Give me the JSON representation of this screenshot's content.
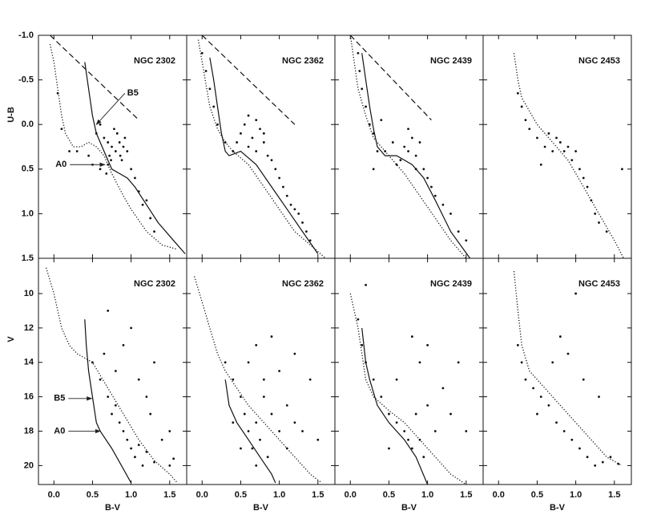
{
  "chart_data": [
    {
      "type": "scatter",
      "title": "NGC 2302",
      "ylabel": "U-B",
      "xlim": [
        -0.2,
        1.72
      ],
      "ylim": [
        1.5,
        -1.0
      ],
      "yticks": [
        {
          "value": -1.0,
          "label": "-1.0"
        },
        -0.5,
        {
          "value": 0.0,
          "label": "0.0"
        },
        0.5,
        {
          "value": 1.0,
          "label": "1.0"
        },
        1.5
      ],
      "annotations": [
        "B5",
        "A0"
      ],
      "series": [
        {
          "style": "dots",
          "x": [
            0.1,
            0.2,
            0.3,
            0.45,
            0.55,
            0.6,
            0.65,
            0.7,
            0.72,
            0.75,
            0.8,
            0.82,
            0.85,
            0.88,
            0.9,
            0.95,
            1.0,
            0.7,
            0.78,
            0.86,
            0.92,
            1.05,
            1.1,
            1.15,
            1.2,
            1.25,
            1.3,
            0.68,
            0.74,
            0.6,
            0.5,
            0.05
          ],
          "values": [
            0.05,
            0.3,
            0.3,
            0.35,
            0.1,
            0.0,
            0.15,
            0.2,
            0.35,
            0.25,
            0.3,
            0.1,
            0.2,
            0.4,
            0.25,
            0.3,
            0.5,
            0.45,
            0.05,
            0.35,
            0.15,
            0.6,
            0.75,
            0.9,
            0.85,
            1.05,
            1.2,
            0.55,
            0.4,
            0.5,
            0.45,
            -0.35
          ]
        },
        {
          "style": "dotted",
          "x": [
            -0.05,
            0.0,
            0.05,
            0.1,
            0.15,
            0.25,
            0.35,
            0.45,
            0.55,
            0.65,
            0.75,
            0.9,
            1.0,
            1.2,
            1.4,
            1.6
          ],
          "values": [
            -0.9,
            -0.7,
            -0.4,
            -0.1,
            0.1,
            0.25,
            0.25,
            0.2,
            0.25,
            0.35,
            0.55,
            0.8,
            0.95,
            1.2,
            1.35,
            1.4
          ]
        },
        {
          "style": "solid",
          "x": [
            0.4,
            0.45,
            0.5,
            0.55,
            0.65,
            0.75,
            0.85,
            0.95,
            1.05,
            1.2,
            1.35,
            1.55,
            1.7
          ],
          "values": [
            -0.7,
            -0.4,
            -0.1,
            0.1,
            0.3,
            0.5,
            0.55,
            0.6,
            0.7,
            0.9,
            1.1,
            1.3,
            1.45
          ]
        },
        {
          "style": "dashed",
          "x": [
            -0.05,
            1.1
          ],
          "values": [
            -1.0,
            -0.05
          ]
        }
      ]
    },
    {
      "type": "scatter",
      "title": "NGC 2362",
      "xlim": [
        -0.2,
        1.72
      ],
      "ylim": [
        1.5,
        -1.0
      ],
      "series": [
        {
          "style": "dots",
          "x": [
            0.0,
            0.05,
            0.1,
            0.15,
            0.2,
            0.3,
            0.4,
            0.45,
            0.5,
            0.55,
            0.6,
            0.65,
            0.7,
            0.75,
            0.8,
            0.85,
            0.9,
            0.95,
            1.0,
            1.05,
            1.1,
            1.15,
            1.2,
            1.25,
            1.3,
            1.35,
            1.4,
            0.6,
            0.7,
            0.8
          ],
          "values": [
            -0.8,
            -0.6,
            -0.4,
            -0.2,
            0.0,
            0.2,
            0.3,
            0.2,
            0.1,
            0.0,
            -0.1,
            0.15,
            0.3,
            0.05,
            0.2,
            0.35,
            0.4,
            0.5,
            0.6,
            0.7,
            0.8,
            0.9,
            0.95,
            1.0,
            1.1,
            1.2,
            1.3,
            0.25,
            -0.05,
            0.1
          ]
        },
        {
          "style": "dotted",
          "x": [
            -0.05,
            0.0,
            0.05,
            0.1,
            0.2,
            0.3,
            0.4,
            0.6,
            0.8,
            1.0,
            1.2,
            1.4,
            1.6
          ],
          "values": [
            -0.95,
            -0.7,
            -0.45,
            -0.2,
            0.05,
            0.2,
            0.3,
            0.45,
            0.7,
            0.95,
            1.2,
            1.35,
            1.5
          ]
        },
        {
          "style": "solid",
          "x": [
            0.1,
            0.15,
            0.2,
            0.25,
            0.3,
            0.35,
            0.5,
            0.7,
            0.9,
            1.1,
            1.3,
            1.5
          ],
          "values": [
            -0.75,
            -0.5,
            -0.2,
            0.1,
            0.3,
            0.35,
            0.3,
            0.45,
            0.7,
            0.95,
            1.2,
            1.45
          ]
        },
        {
          "style": "dashed",
          "x": [
            0.0,
            1.2
          ],
          "values": [
            -1.0,
            0.0
          ]
        }
      ]
    },
    {
      "type": "scatter",
      "title": "NGC 2439",
      "xlim": [
        -0.2,
        1.72
      ],
      "ylim": [
        1.5,
        -1.0
      ],
      "series": [
        {
          "style": "dots",
          "x": [
            0.1,
            0.12,
            0.15,
            0.2,
            0.25,
            0.3,
            0.35,
            0.45,
            0.55,
            0.65,
            0.7,
            0.75,
            0.8,
            0.85,
            0.9,
            0.95,
            1.0,
            1.05,
            1.1,
            1.2,
            1.3,
            1.4,
            0.6,
            0.75,
            0.85,
            0.4,
            0.3,
            1.5
          ],
          "values": [
            -0.8,
            -0.6,
            -0.4,
            -0.2,
            0.0,
            0.1,
            0.3,
            0.3,
            0.2,
            0.4,
            0.25,
            0.3,
            0.15,
            0.35,
            0.2,
            0.5,
            0.6,
            0.7,
            0.8,
            0.9,
            1.0,
            1.2,
            0.45,
            0.05,
            0.5,
            -0.05,
            0.5,
            1.3
          ]
        },
        {
          "style": "dotted",
          "x": [
            0.0,
            0.05,
            0.1,
            0.2,
            0.3,
            0.5,
            0.7,
            0.9,
            1.1,
            1.3,
            1.5
          ],
          "values": [
            -1.0,
            -0.7,
            -0.4,
            -0.1,
            0.15,
            0.35,
            0.55,
            0.8,
            1.05,
            1.3,
            1.5
          ]
        },
        {
          "style": "solid",
          "x": [
            0.15,
            0.2,
            0.25,
            0.3,
            0.35,
            0.45,
            0.6,
            0.8,
            0.95,
            1.1,
            1.3,
            1.55
          ],
          "values": [
            -0.8,
            -0.5,
            -0.2,
            0.05,
            0.25,
            0.35,
            0.35,
            0.45,
            0.6,
            0.85,
            1.2,
            1.5
          ]
        },
        {
          "style": "dashed",
          "x": [
            0.0,
            1.05
          ],
          "values": [
            -1.0,
            -0.05
          ]
        }
      ]
    },
    {
      "type": "scatter",
      "title": "NGC 2453",
      "xlim": [
        -0.2,
        1.72
      ],
      "ylim": [
        1.5,
        -1.0
      ],
      "series": [
        {
          "style": "dots",
          "x": [
            0.25,
            0.3,
            0.35,
            0.4,
            0.5,
            0.6,
            0.7,
            0.75,
            0.8,
            0.85,
            0.9,
            0.95,
            1.0,
            1.05,
            1.1,
            1.15,
            1.2,
            1.25,
            1.3,
            1.4,
            1.6,
            0.55,
            0.65
          ],
          "values": [
            -0.35,
            -0.2,
            -0.05,
            0.05,
            0.15,
            0.25,
            0.3,
            0.15,
            0.2,
            0.3,
            0.25,
            0.4,
            0.3,
            0.5,
            0.6,
            0.7,
            0.85,
            1.0,
            1.1,
            1.2,
            0.5,
            0.45,
            0.1
          ]
        },
        {
          "style": "dotted",
          "x": [
            0.2,
            0.25,
            0.3,
            0.5,
            0.7,
            0.9,
            1.1,
            1.3,
            1.5,
            1.62
          ],
          "values": [
            -0.8,
            -0.5,
            -0.3,
            0.0,
            0.2,
            0.4,
            0.7,
            1.0,
            1.3,
            1.5
          ]
        }
      ]
    },
    {
      "type": "scatter",
      "title": "NGC 2302",
      "ylabel": "V",
      "xlabel": "B-V",
      "xlim": [
        -0.2,
        1.72
      ],
      "ylim": [
        21.1,
        7.95
      ],
      "yticks": [
        10,
        12,
        14,
        16,
        18,
        20
      ],
      "xticks": [
        {
          "value": 0.0,
          "label": "0.0"
        },
        0.5,
        {
          "value": 1.0,
          "label": "1.0"
        },
        1.5
      ],
      "annotations": [
        "B5",
        "A0"
      ],
      "series": [
        {
          "style": "dots",
          "x": [
            0.5,
            0.6,
            0.7,
            0.75,
            0.8,
            0.85,
            0.9,
            0.95,
            1.0,
            1.05,
            1.1,
            1.15,
            1.2,
            1.3,
            1.4,
            1.5,
            0.65,
            0.8,
            0.9,
            1.0,
            1.1,
            1.2,
            1.25,
            0.7,
            1.3,
            1.5,
            1.55
          ],
          "values": [
            14,
            15,
            16,
            17,
            16.5,
            17.5,
            18,
            18.5,
            19,
            19.5,
            18.8,
            20,
            19.2,
            19.8,
            18.5,
            20,
            13.5,
            14.5,
            13,
            12,
            15,
            16,
            17,
            11,
            14,
            18,
            19.6
          ]
        },
        {
          "style": "dotted",
          "x": [
            -0.1,
            0.0,
            0.05,
            0.1,
            0.2,
            0.3,
            0.5,
            0.7,
            0.9,
            1.1,
            1.3,
            1.5,
            1.6
          ],
          "values": [
            8.5,
            10,
            11,
            12,
            13,
            13.5,
            14,
            15.5,
            17,
            18.5,
            19.7,
            20.5,
            21
          ]
        },
        {
          "style": "solid",
          "x": [
            0.4,
            0.42,
            0.45,
            0.5,
            0.55,
            0.6,
            0.75,
            0.9,
            1.0
          ],
          "values": [
            11.5,
            13,
            14.5,
            16,
            17.5,
            18,
            19,
            20.2,
            21
          ]
        }
      ]
    },
    {
      "type": "scatter",
      "title": "NGC 2362",
      "xlabel": "B-V",
      "xlim": [
        -0.2,
        1.72
      ],
      "ylim": [
        21.1,
        7.95
      ],
      "xticks": [
        {
          "value": 0.0,
          "label": "0.0"
        },
        0.5,
        {
          "value": 1.0,
          "label": "1.0"
        },
        1.5
      ],
      "series": [
        {
          "style": "dots",
          "x": [
            0.3,
            0.4,
            0.5,
            0.55,
            0.6,
            0.65,
            0.7,
            0.75,
            0.8,
            0.85,
            0.9,
            1.0,
            1.1,
            1.2,
            1.3,
            1.4,
            1.5,
            0.6,
            0.7,
            0.8,
            0.9,
            1.0,
            0.5,
            0.7,
            1.2,
            1.1,
            0.4
          ],
          "values": [
            14,
            15,
            16,
            17,
            18,
            19,
            17.5,
            18.5,
            16,
            19.5,
            17,
            18,
            16.5,
            17.5,
            18,
            15,
            18.5,
            14,
            13,
            15,
            12.5,
            14.5,
            19,
            20,
            13.5,
            19,
            17.5
          ]
        },
        {
          "style": "dotted",
          "x": [
            -0.1,
            0.0,
            0.1,
            0.2,
            0.3,
            0.45,
            0.6,
            0.8,
            1.0,
            1.2,
            1.4,
            1.55
          ],
          "values": [
            9,
            10.5,
            12,
            13.5,
            14.5,
            15.5,
            16.5,
            17.5,
            18.5,
            19.5,
            20.5,
            21
          ]
        },
        {
          "style": "solid",
          "x": [
            0.3,
            0.35,
            0.45,
            0.6,
            0.75,
            0.9,
            0.95
          ],
          "values": [
            15,
            16.5,
            17.5,
            18.5,
            19.5,
            20.5,
            21
          ]
        }
      ]
    },
    {
      "type": "scatter",
      "title": "NGC 2439",
      "xlabel": "B-V",
      "xlim": [
        -0.2,
        1.72
      ],
      "ylim": [
        21.1,
        7.95
      ],
      "xticks": [
        {
          "value": 0.0,
          "label": "0.0"
        },
        0.5,
        {
          "value": 1.0,
          "label": "1.0"
        },
        1.5
      ],
      "series": [
        {
          "style": "dots",
          "x": [
            0.1,
            0.15,
            0.2,
            0.3,
            0.4,
            0.5,
            0.6,
            0.7,
            0.75,
            0.8,
            0.85,
            0.9,
            0.95,
            1.0,
            1.1,
            1.2,
            1.3,
            1.4,
            0.6,
            0.9,
            1.0,
            0.8,
            0.5,
            0.2,
            1.5
          ],
          "values": [
            11.5,
            13,
            14,
            15,
            16,
            17,
            17.5,
            18,
            18.5,
            19,
            17,
            18.5,
            19.5,
            16.5,
            18,
            15.5,
            17,
            14,
            15,
            14,
            13,
            12.5,
            19,
            9.5,
            18
          ]
        },
        {
          "style": "dotted",
          "x": [
            0.0,
            0.1,
            0.15,
            0.2,
            0.3,
            0.5,
            0.7,
            0.9,
            1.1,
            1.3,
            1.5
          ],
          "values": [
            10,
            12,
            13.5,
            15,
            16,
            16.8,
            17.5,
            18.5,
            19.5,
            20.5,
            21.1
          ]
        },
        {
          "style": "solid",
          "x": [
            0.15,
            0.2,
            0.25,
            0.35,
            0.5,
            0.7,
            0.85,
            1.0
          ],
          "values": [
            12,
            14,
            15,
            16.5,
            17.5,
            18.5,
            19.5,
            21.1
          ]
        }
      ]
    },
    {
      "type": "scatter",
      "title": "NGC 2453",
      "xlabel": "B-V",
      "xlim": [
        -0.2,
        1.72
      ],
      "ylim": [
        21.1,
        7.95
      ],
      "xticks": [
        {
          "value": 0.0,
          "label": "0.0"
        },
        0.5,
        {
          "value": 1.0,
          "label": "1.0"
        },
        1.5
      ],
      "series": [
        {
          "style": "dots",
          "x": [
            0.25,
            0.3,
            0.35,
            0.45,
            0.55,
            0.65,
            0.75,
            0.85,
            0.95,
            1.05,
            1.15,
            1.25,
            1.35,
            1.45,
            1.55,
            0.7,
            0.9,
            1.1,
            1.3,
            0.5,
            1.0,
            0.8
          ],
          "values": [
            13,
            14,
            15,
            15.5,
            16,
            16.5,
            17.5,
            18,
            18.5,
            19,
            19.5,
            20,
            19.8,
            19.5,
            19.9,
            14,
            13.5,
            15,
            16,
            17,
            10,
            12.5
          ]
        },
        {
          "style": "dotted",
          "x": [
            0.2,
            0.25,
            0.3,
            0.4,
            0.6,
            0.8,
            1.0,
            1.2,
            1.4,
            1.6
          ],
          "values": [
            8.7,
            11,
            13,
            14.5,
            15.5,
            16.5,
            17.5,
            18.5,
            19.5,
            20
          ]
        }
      ]
    }
  ]
}
